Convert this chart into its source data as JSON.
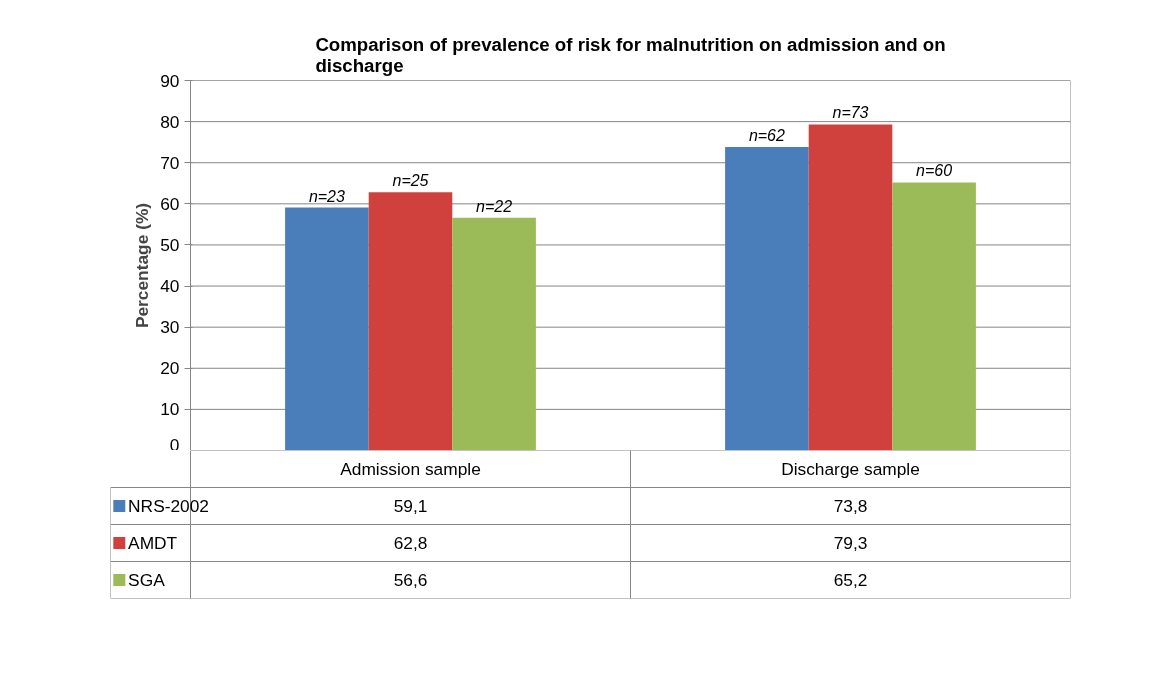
{
  "chart_data": {
    "type": "bar",
    "title": "Comparison of prevalence of risk for malnutrition on admission and on discharge",
    "ylabel": "Percentage (%)",
    "categories": [
      "Admission sample",
      "Discharge sample"
    ],
    "series": [
      {
        "name": "NRS-2002",
        "color": "#4a7ebb",
        "values": [
          59.1,
          73.8
        ],
        "value_labels": [
          "59,1",
          "73,8"
        ]
      },
      {
        "name": "AMDT",
        "color": "#d0403c",
        "values": [
          62.8,
          79.3
        ],
        "value_labels": [
          "62,8",
          "79,3"
        ]
      },
      {
        "name": "SGA",
        "color": "#9bbb59",
        "values": [
          56.6,
          65.2
        ],
        "value_labels": [
          "56,6",
          "65,2"
        ]
      }
    ],
    "ylim": [
      0,
      90
    ],
    "yticks": [
      0,
      10,
      20,
      30,
      40,
      50,
      60,
      70,
      80,
      90
    ],
    "grid": "y",
    "legend": "bottom",
    "annotations": [
      "n=23",
      "n=25",
      "n=22",
      "n=62",
      "n=73",
      "n=60"
    ]
  }
}
